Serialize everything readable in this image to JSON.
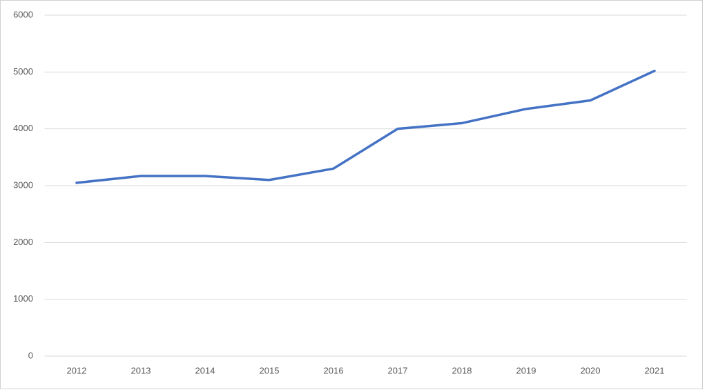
{
  "chart_data": {
    "type": "line",
    "categories": [
      "2012",
      "2013",
      "2014",
      "2015",
      "2016",
      "2017",
      "2018",
      "2019",
      "2020",
      "2021"
    ],
    "series": [
      {
        "color": "#4472c4",
        "values": [
          3050,
          3170,
          3170,
          3100,
          3300,
          4000,
          4100,
          4350,
          4500,
          5020
        ]
      }
    ],
    "ylim": [
      0,
      6000
    ],
    "yticks": [
      0,
      1000,
      2000,
      3000,
      4000,
      5000,
      6000
    ],
    "grid": true
  }
}
